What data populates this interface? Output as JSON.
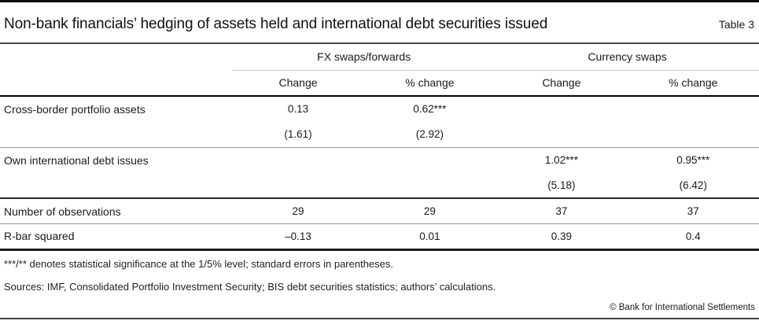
{
  "header": {
    "title": "Non-bank financials’ hedging of assets held and international debt securities issued",
    "table_label": "Table 3"
  },
  "table": {
    "column_groups": [
      {
        "label": "FX swaps/forwards"
      },
      {
        "label": "Currency swaps"
      }
    ],
    "sub_headers": [
      "Change",
      "% change",
      "Change",
      "% change"
    ],
    "rows": [
      {
        "label": "Cross-border portfolio assets",
        "values": [
          "0.13",
          "0.62***",
          "",
          ""
        ]
      },
      {
        "label": "",
        "values": [
          "(1.61)",
          "(2.92)",
          "",
          ""
        ]
      },
      {
        "label": "Own international debt issues",
        "values": [
          "",
          "",
          "1.02***",
          "0.95***"
        ]
      },
      {
        "label": "",
        "values": [
          "",
          "",
          "(5.18)",
          "(6.42)"
        ]
      },
      {
        "label": "Number of observations",
        "values": [
          "29",
          "29",
          "37",
          "37"
        ]
      },
      {
        "label": "R-bar squared",
        "values": [
          "–0.13",
          "0.01",
          "0.39",
          "0.4"
        ]
      }
    ]
  },
  "footnotes": {
    "significance": "***/** denotes statistical significance at the 1/5% level; standard errors in parentheses.",
    "sources": "Sources: IMF, Consolidated Portfolio Investment Security; BIS debt securities statistics; authors’ calculations."
  },
  "footer": {
    "copyright": "© Bank for International Settlements"
  },
  "colors": {
    "top_bar": "#0a0a0a",
    "rule_dark": "#2b2b2b",
    "rule_light": "#9b9b9b",
    "text": "#1a1a1a"
  }
}
